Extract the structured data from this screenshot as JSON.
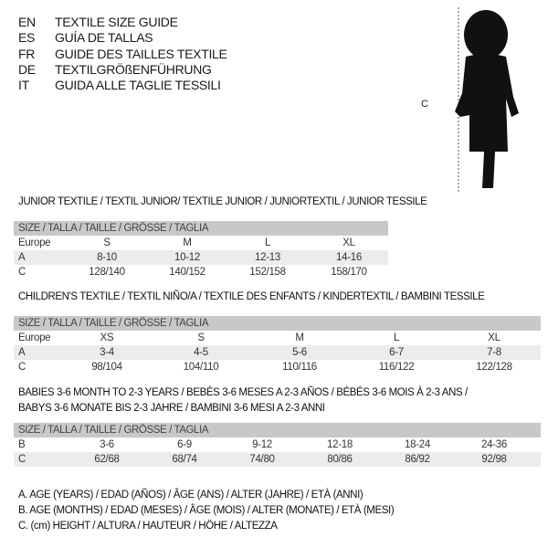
{
  "languages": [
    {
      "code": "EN",
      "text": "TEXTILE SIZE GUIDE"
    },
    {
      "code": "ES",
      "text": "GUÍA DE TALLAS"
    },
    {
      "code": "FR",
      "text": "GUIDE DES TAILLES TEXTILE"
    },
    {
      "code": "DE",
      "text": "TEXTILGRÖßENFÜHRUNG"
    },
    {
      "code": "IT",
      "text": "GUIDA ALLE TAGLIE TESSILI"
    }
  ],
  "figure": {
    "label": "C"
  },
  "junior": {
    "title": "JUNIOR TEXTILE / TEXTIL JUNIOR/ TEXTILE JUNIOR / JUNIORTEXTIL / JUNIOR TESSILE",
    "header": "SIZE / TALLA / TAILLE / GRÖSSE / TAGLIA",
    "rows": [
      {
        "label": "Europe",
        "values": [
          "S",
          "M",
          "L",
          "XL"
        ]
      },
      {
        "label": "A",
        "values": [
          "8-10",
          "10-12",
          "12-13",
          "14-16"
        ]
      },
      {
        "label": "C",
        "values": [
          "128/140",
          "140/152",
          "152/158",
          "158/170"
        ]
      }
    ]
  },
  "children": {
    "title": "CHILDREN'S TEXTILE / TEXTIL NIÑO/A / TEXTILE DES ENFANTS / KINDERTEXTIL / BAMBINI TESSILE",
    "header": "SIZE / TALLA / TAILLE / GRÖSSE / TAGLIA",
    "rows": [
      {
        "label": "Europe",
        "values": [
          "XS",
          "S",
          "M",
          "L",
          "XL"
        ]
      },
      {
        "label": "A",
        "values": [
          "3-4",
          "4-5",
          "5-6",
          "6-7",
          "7-8"
        ]
      },
      {
        "label": "C",
        "values": [
          "98/104",
          "104/110",
          "110/116",
          "116/122",
          "122/128"
        ]
      }
    ]
  },
  "babies": {
    "title_line1": "BABIES 3-6 MONTH TO 2-3 YEARS / BEBÉS 3-6 MESES A 2-3 AÑOS / BÉBÉS 3-6 MOIS À 2-3 ANS /",
    "title_line2": "BABYS 3-6 MONATE BIS 2-3 JAHRE / BAMBINI 3-6 MESI A 2-3 ANNI",
    "header": "SIZE / TALLA / TAILLE / GRÖSSE / TAGLIA",
    "rows": [
      {
        "label": "B",
        "values": [
          "3-6",
          "6-9",
          "9-12",
          "12-18",
          "18-24",
          "24-36"
        ]
      },
      {
        "label": "C",
        "values": [
          "62/68",
          "68/74",
          "74/80",
          "80/86",
          "86/92",
          "92/98"
        ]
      }
    ]
  },
  "legend": [
    "A. AGE (YEARS) / EDAD (AÑOS) / ÂGE (ANS) / ALTER (JAHRE) / ETÀ (ANNI)",
    "B. AGE (MONTHS) / EDAD (MESES) / ÂGE (MOIS) / ALTER (MONATE) / ETÀ (MESI)",
    "C. (cm) HEIGHT / ALTURA / HAUTEUR / HÖHE / ALTEZZA"
  ]
}
